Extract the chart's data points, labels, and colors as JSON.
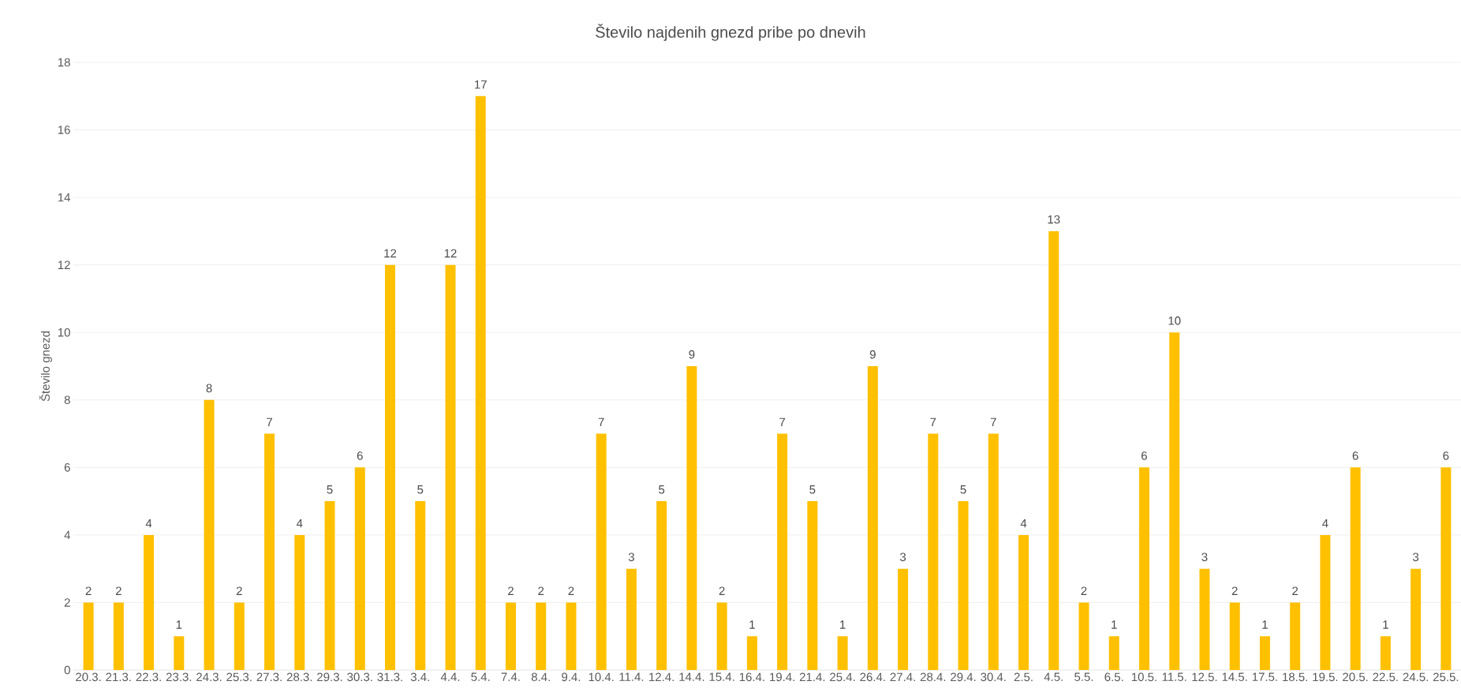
{
  "chart_data": {
    "type": "bar",
    "title": "Število najdenih gnezd pribe po dnevih",
    "ylabel": "Število gnezd",
    "categories": [
      "20.3.",
      "21.3.",
      "22.3.",
      "23.3.",
      "24.3.",
      "25.3.",
      "27.3.",
      "28.3.",
      "29.3.",
      "30.3.",
      "31.3.",
      "3.4.",
      "4.4.",
      "5.4.",
      "7.4.",
      "8.4.",
      "9.4.",
      "10.4.",
      "11.4.",
      "12.4.",
      "14.4.",
      "15.4.",
      "16.4.",
      "19.4.",
      "21.4.",
      "25.4.",
      "26.4.",
      "27.4.",
      "28.4.",
      "29.4.",
      "30.4.",
      "2.5.",
      "4.5.",
      "5.5.",
      "6.5.",
      "10.5.",
      "11.5.",
      "12.5.",
      "14.5.",
      "17.5.",
      "18.5.",
      "19.5.",
      "20.5.",
      "22.5.",
      "24.5.",
      "25.5."
    ],
    "values": [
      2,
      2,
      4,
      1,
      8,
      2,
      7,
      4,
      5,
      6,
      12,
      5,
      12,
      17,
      2,
      2,
      2,
      7,
      3,
      5,
      9,
      2,
      1,
      7,
      5,
      1,
      9,
      3,
      7,
      5,
      7,
      4,
      13,
      2,
      1,
      6,
      10,
      3,
      2,
      1,
      2,
      4,
      6,
      1,
      3,
      6
    ],
    "color": "#ffc000",
    "ylim": [
      0,
      18
    ],
    "yticks": [
      0,
      2,
      4,
      6,
      8,
      10,
      12,
      14,
      16,
      18
    ],
    "grid": "y",
    "data_labels": true
  }
}
